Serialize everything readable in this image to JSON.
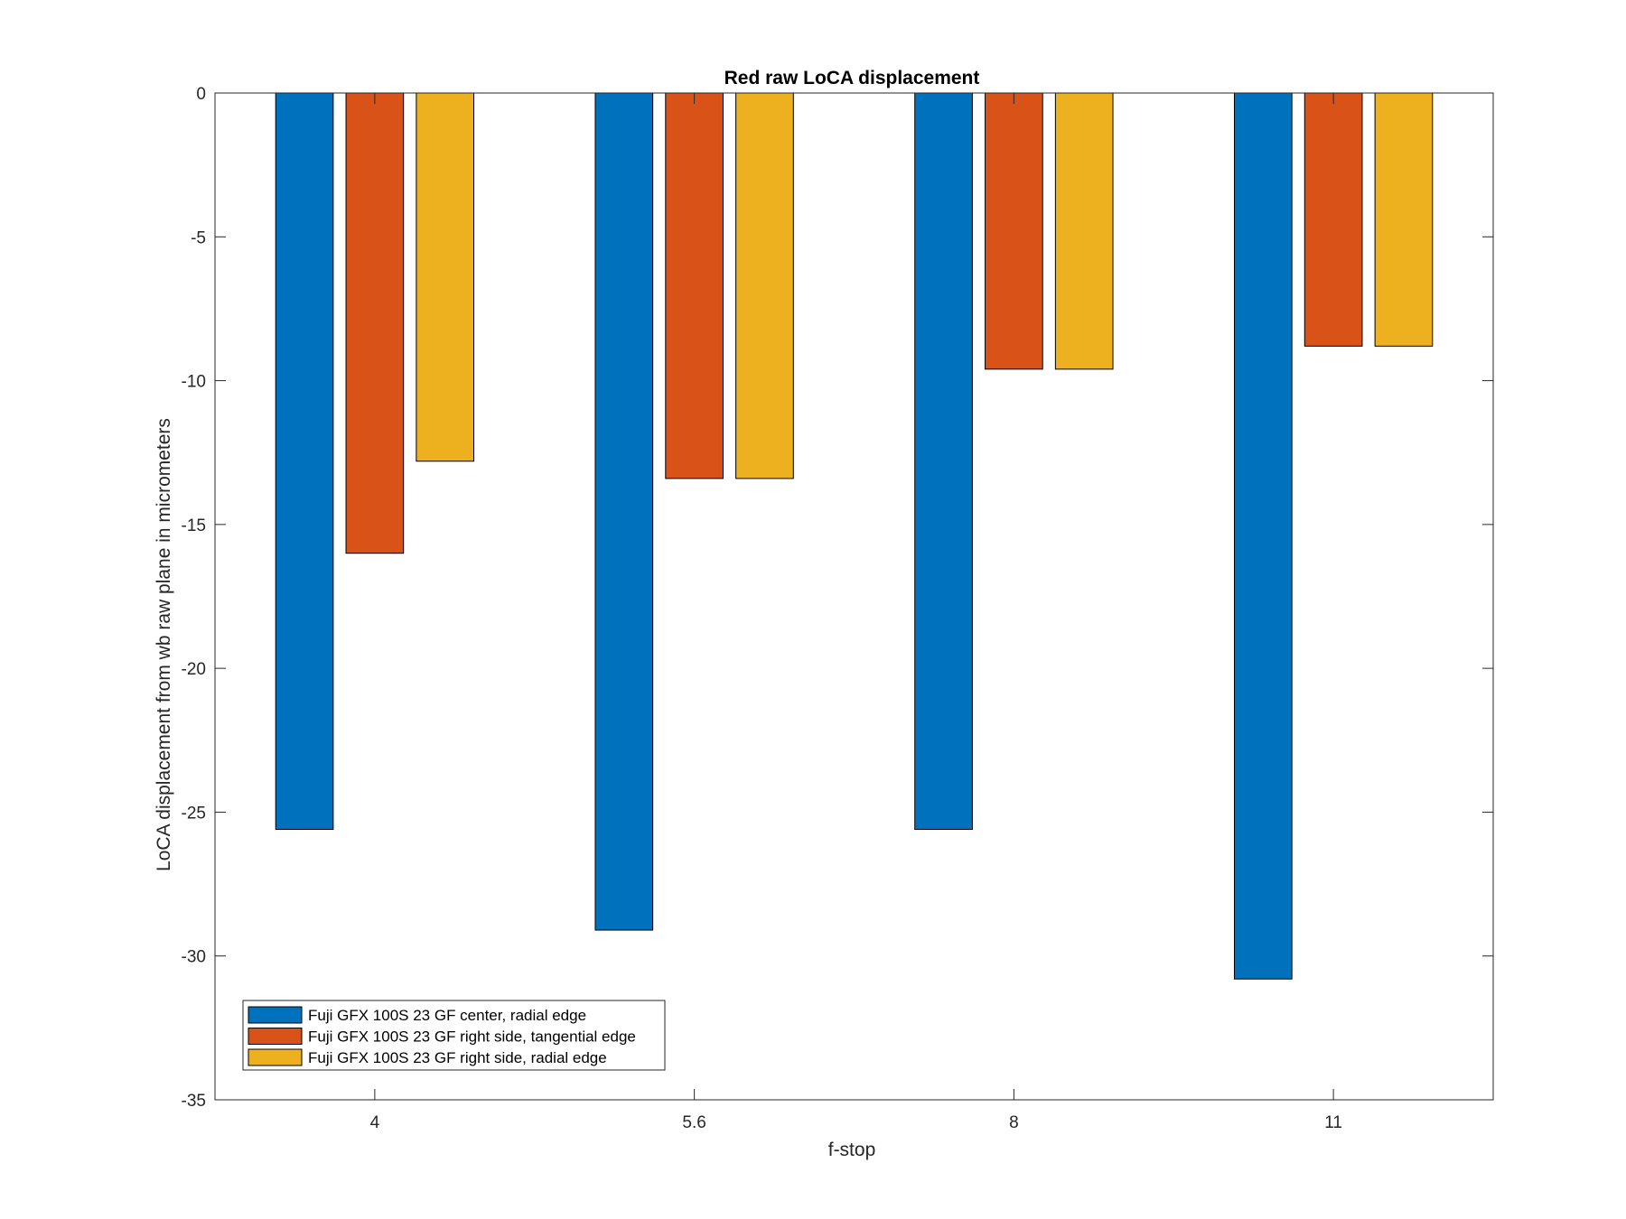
{
  "chart_data": {
    "type": "bar",
    "title": "Red raw  LoCA displacement",
    "xlabel": "f-stop",
    "ylabel": "LoCA displacement from wb raw plane in micrometers",
    "categories": [
      "4",
      "5.6",
      "8",
      "11"
    ],
    "ylim": [
      -35,
      0
    ],
    "yticks": [
      0,
      -5,
      -10,
      -15,
      -20,
      -25,
      -30,
      -35
    ],
    "grid": false,
    "legend_position": "bottom-left",
    "series": [
      {
        "name": "Fuji GFX 100S 23 GF center, radial edge",
        "color": "#0072BD",
        "values": [
          -25.6,
          -29.1,
          -25.6,
          -30.8
        ]
      },
      {
        "name": "Fuji GFX 100S 23 GF right side, tangential edge",
        "color": "#D95319",
        "values": [
          -16.0,
          -13.4,
          -9.6,
          -8.8
        ]
      },
      {
        "name": "Fuji GFX 100S 23 GF right side, radial edge",
        "color": "#EDB120",
        "values": [
          -12.8,
          -13.4,
          -9.6,
          -8.8
        ]
      }
    ]
  }
}
